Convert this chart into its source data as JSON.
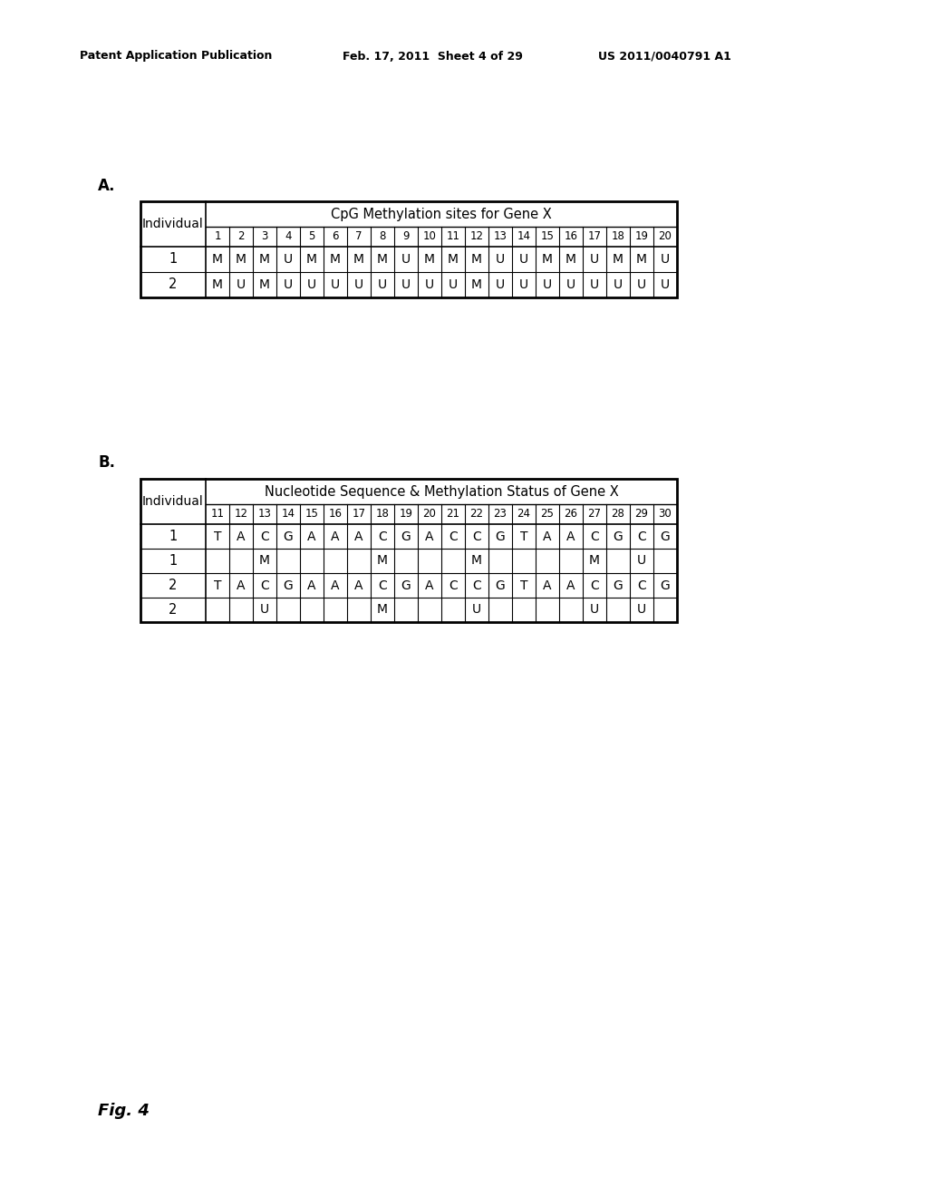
{
  "header_left": "Patent Application Publication",
  "header_mid": "Feb. 17, 2011  Sheet 4 of 29",
  "header_right": "US 2011/0040791 A1",
  "fig_label": "Fig. 4",
  "section_a_label": "A.",
  "section_b_label": "B.",
  "table_a": {
    "title": "CpG Methylation sites for Gene X",
    "row_header": "Individual",
    "col_headers": [
      "1",
      "2",
      "3",
      "4",
      "5",
      "6",
      "7",
      "8",
      "9",
      "10",
      "11",
      "12",
      "13",
      "14",
      "15",
      "16",
      "17",
      "18",
      "19",
      "20"
    ],
    "rows": [
      {
        "label": "1",
        "data": [
          "M",
          "M",
          "M",
          "U",
          "M",
          "M",
          "M",
          "M",
          "U",
          "M",
          "M",
          "M",
          "U",
          "U",
          "M",
          "M",
          "U",
          "M",
          "M",
          "U"
        ]
      },
      {
        "label": "2",
        "data": [
          "M",
          "U",
          "M",
          "U",
          "U",
          "U",
          "U",
          "U",
          "U",
          "U",
          "U",
          "M",
          "U",
          "U",
          "U",
          "U",
          "U",
          "U",
          "U",
          "U"
        ]
      }
    ]
  },
  "table_b": {
    "title": "Nucleotide Sequence & Methylation Status of Gene X",
    "row_header": "Individual",
    "col_headers": [
      "11",
      "12",
      "13",
      "14",
      "15",
      "16",
      "17",
      "18",
      "19",
      "20",
      "21",
      "22",
      "23",
      "24",
      "25",
      "26",
      "27",
      "28",
      "29",
      "30"
    ],
    "rows": [
      {
        "label": "1",
        "data": [
          "T",
          "A",
          "C",
          "G",
          "A",
          "A",
          "A",
          "C",
          "G",
          "A",
          "C",
          "C",
          "G",
          "T",
          "A",
          "A",
          "C",
          "G",
          "C",
          "G"
        ]
      },
      {
        "label": "1",
        "data": [
          "",
          "",
          "M",
          "",
          "",
          "",
          "",
          "M",
          "",
          "",
          "",
          "M",
          "",
          "",
          "",
          "",
          "M",
          "",
          "U",
          ""
        ]
      },
      {
        "label": "2",
        "data": [
          "T",
          "A",
          "C",
          "G",
          "A",
          "A",
          "A",
          "C",
          "G",
          "A",
          "C",
          "C",
          "G",
          "T",
          "A",
          "A",
          "C",
          "G",
          "C",
          "G"
        ]
      },
      {
        "label": "2",
        "data": [
          "",
          "",
          "U",
          "",
          "",
          "",
          "",
          "M",
          "",
          "",
          "",
          "U",
          "",
          "",
          "",
          "",
          "U",
          "",
          "U",
          ""
        ]
      }
    ]
  },
  "bg_color": "#ffffff",
  "text_color": "#000000"
}
